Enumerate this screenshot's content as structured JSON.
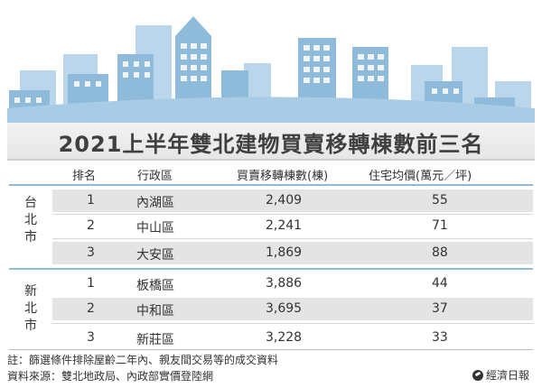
{
  "title": "2021上半年雙北建物買賣移轉棟數前三名",
  "columns": {
    "rank": "排名",
    "district": "行政區",
    "transfers": "買賣移轉棟數(棟)",
    "price": "住宅均價(萬元／坪)"
  },
  "groups": [
    {
      "city": "台北市",
      "rows": [
        {
          "rank": "1",
          "district": "內湖區",
          "transfers": "2,409",
          "price": "55"
        },
        {
          "rank": "2",
          "district": "中山區",
          "transfers": "2,241",
          "price": "71"
        },
        {
          "rank": "3",
          "district": "大安區",
          "transfers": "1,869",
          "price": "88"
        }
      ]
    },
    {
      "city": "新北市",
      "rows": [
        {
          "rank": "1",
          "district": "板橋區",
          "transfers": "3,886",
          "price": "44"
        },
        {
          "rank": "2",
          "district": "中和區",
          "transfers": "3,695",
          "price": "37"
        },
        {
          "rank": "3",
          "district": "新莊區",
          "transfers": "3,228",
          "price": "33"
        }
      ]
    }
  ],
  "note": "註：篩選條件排除屋齡二年內、親友間交易等的成交資料",
  "source": "資料來源：雙北地政局、內政部實價登陸網",
  "publisher": "經濟日報",
  "colors": {
    "sky": "#a9cce6",
    "building": "#8fbbdb",
    "building_light": "#b9d6eb",
    "row_shade": "#e4e4e4",
    "divider": "#8fbad8"
  }
}
